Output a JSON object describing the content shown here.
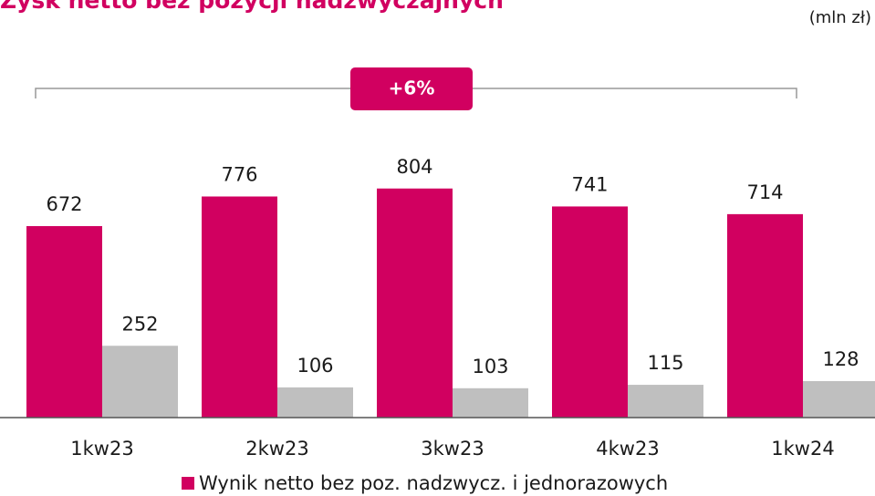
{
  "chart_data": {
    "type": "bar",
    "title": "Zysk netto bez pozycji nadzwyczajnych",
    "unit_label": "(mln zł)",
    "annotation": "+6%",
    "categories": [
      "1kw23",
      "2kw23",
      "3kw23",
      "4kw23",
      "1kw24"
    ],
    "series": [
      {
        "name": "Wynik netto bez poz. nadzwycz. i jednorazowych",
        "color": "#d10060",
        "values": [
          672,
          776,
          804,
          741,
          714
        ]
      },
      {
        "color": "#bfbfbf",
        "values": [
          252,
          106,
          103,
          115,
          128
        ]
      }
    ]
  }
}
